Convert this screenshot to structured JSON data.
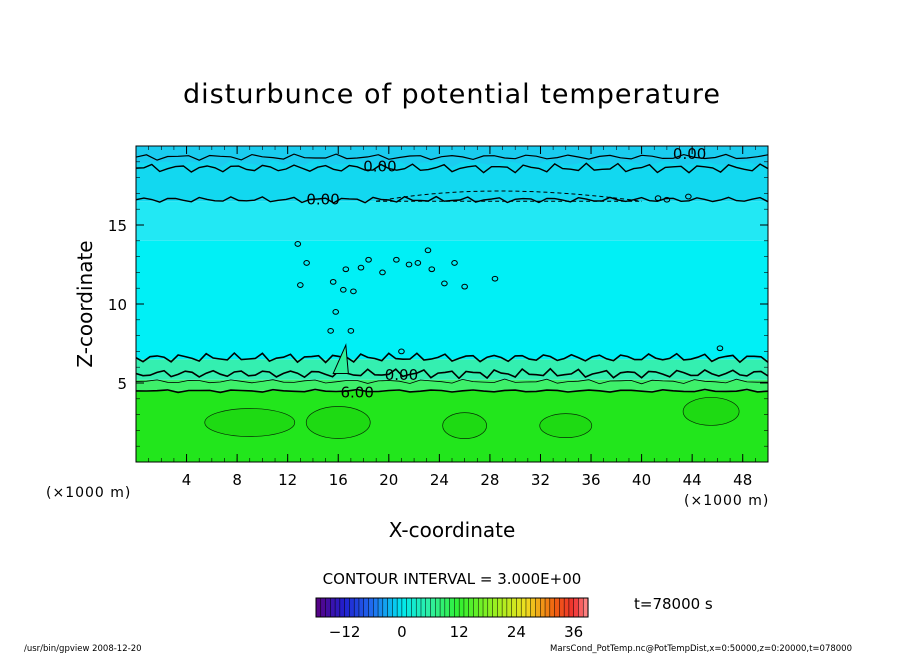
{
  "chart_data": {
    "type": "heatmap",
    "title": "disturbunce of potential temperature",
    "xlabel": "X-coordinate",
    "ylabel": "Z-coordinate",
    "x_unit": "(×1000 m)",
    "y_unit": "(×1000 m)",
    "xlim": [
      0,
      50
    ],
    "ylim": [
      0,
      20
    ],
    "x_ticks": [
      4,
      8,
      12,
      16,
      20,
      24,
      28,
      32,
      36,
      40,
      44,
      48
    ],
    "y_ticks": [
      5,
      10,
      15
    ],
    "layers": [
      {
        "z_from": 0,
        "z_to": 4.5,
        "value": 9,
        "color": "#22e61c"
      },
      {
        "z_from": 4.5,
        "z_to": 5.2,
        "value": 6,
        "color": "#3ef06a"
      },
      {
        "z_from": 5.2,
        "z_to": 6.5,
        "value": 4.5,
        "color": "#34efb0"
      },
      {
        "z_from": 6.5,
        "z_to": 14,
        "value": 1.5,
        "color": "#00f0f6"
      },
      {
        "z_from": 14,
        "z_to": 16.5,
        "value": 0.5,
        "color": "#22e8f4"
      },
      {
        "z_from": 16.5,
        "z_to": 20,
        "value": 0,
        "color": "#12d8f0"
      }
    ],
    "contour_labels": [
      {
        "text": "0.00",
        "x": 19.3,
        "z": 18.7
      },
      {
        "text": "0.00",
        "x": 14.8,
        "z": 16.6
      },
      {
        "text": "0.00",
        "x": 43.8,
        "z": 19.5
      },
      {
        "text": "0.00",
        "x": 21,
        "z": 5.5
      },
      {
        "text": "6.00",
        "x": 17.5,
        "z": 4.4
      }
    ],
    "contour_interval": "CONTOUR INTERVAL = 3.000E+00",
    "time_label": "t=78000 s",
    "colorbar": {
      "range": [
        -18,
        39
      ],
      "ticks": [
        -12,
        0,
        12,
        24,
        36
      ]
    },
    "footer_left": "/usr/bin/gpview   2008-12-20",
    "footer_right": "MarsCond_PotTemp.nc@PotTempDist,x=0:50000,z=0:20000,t=078000"
  }
}
